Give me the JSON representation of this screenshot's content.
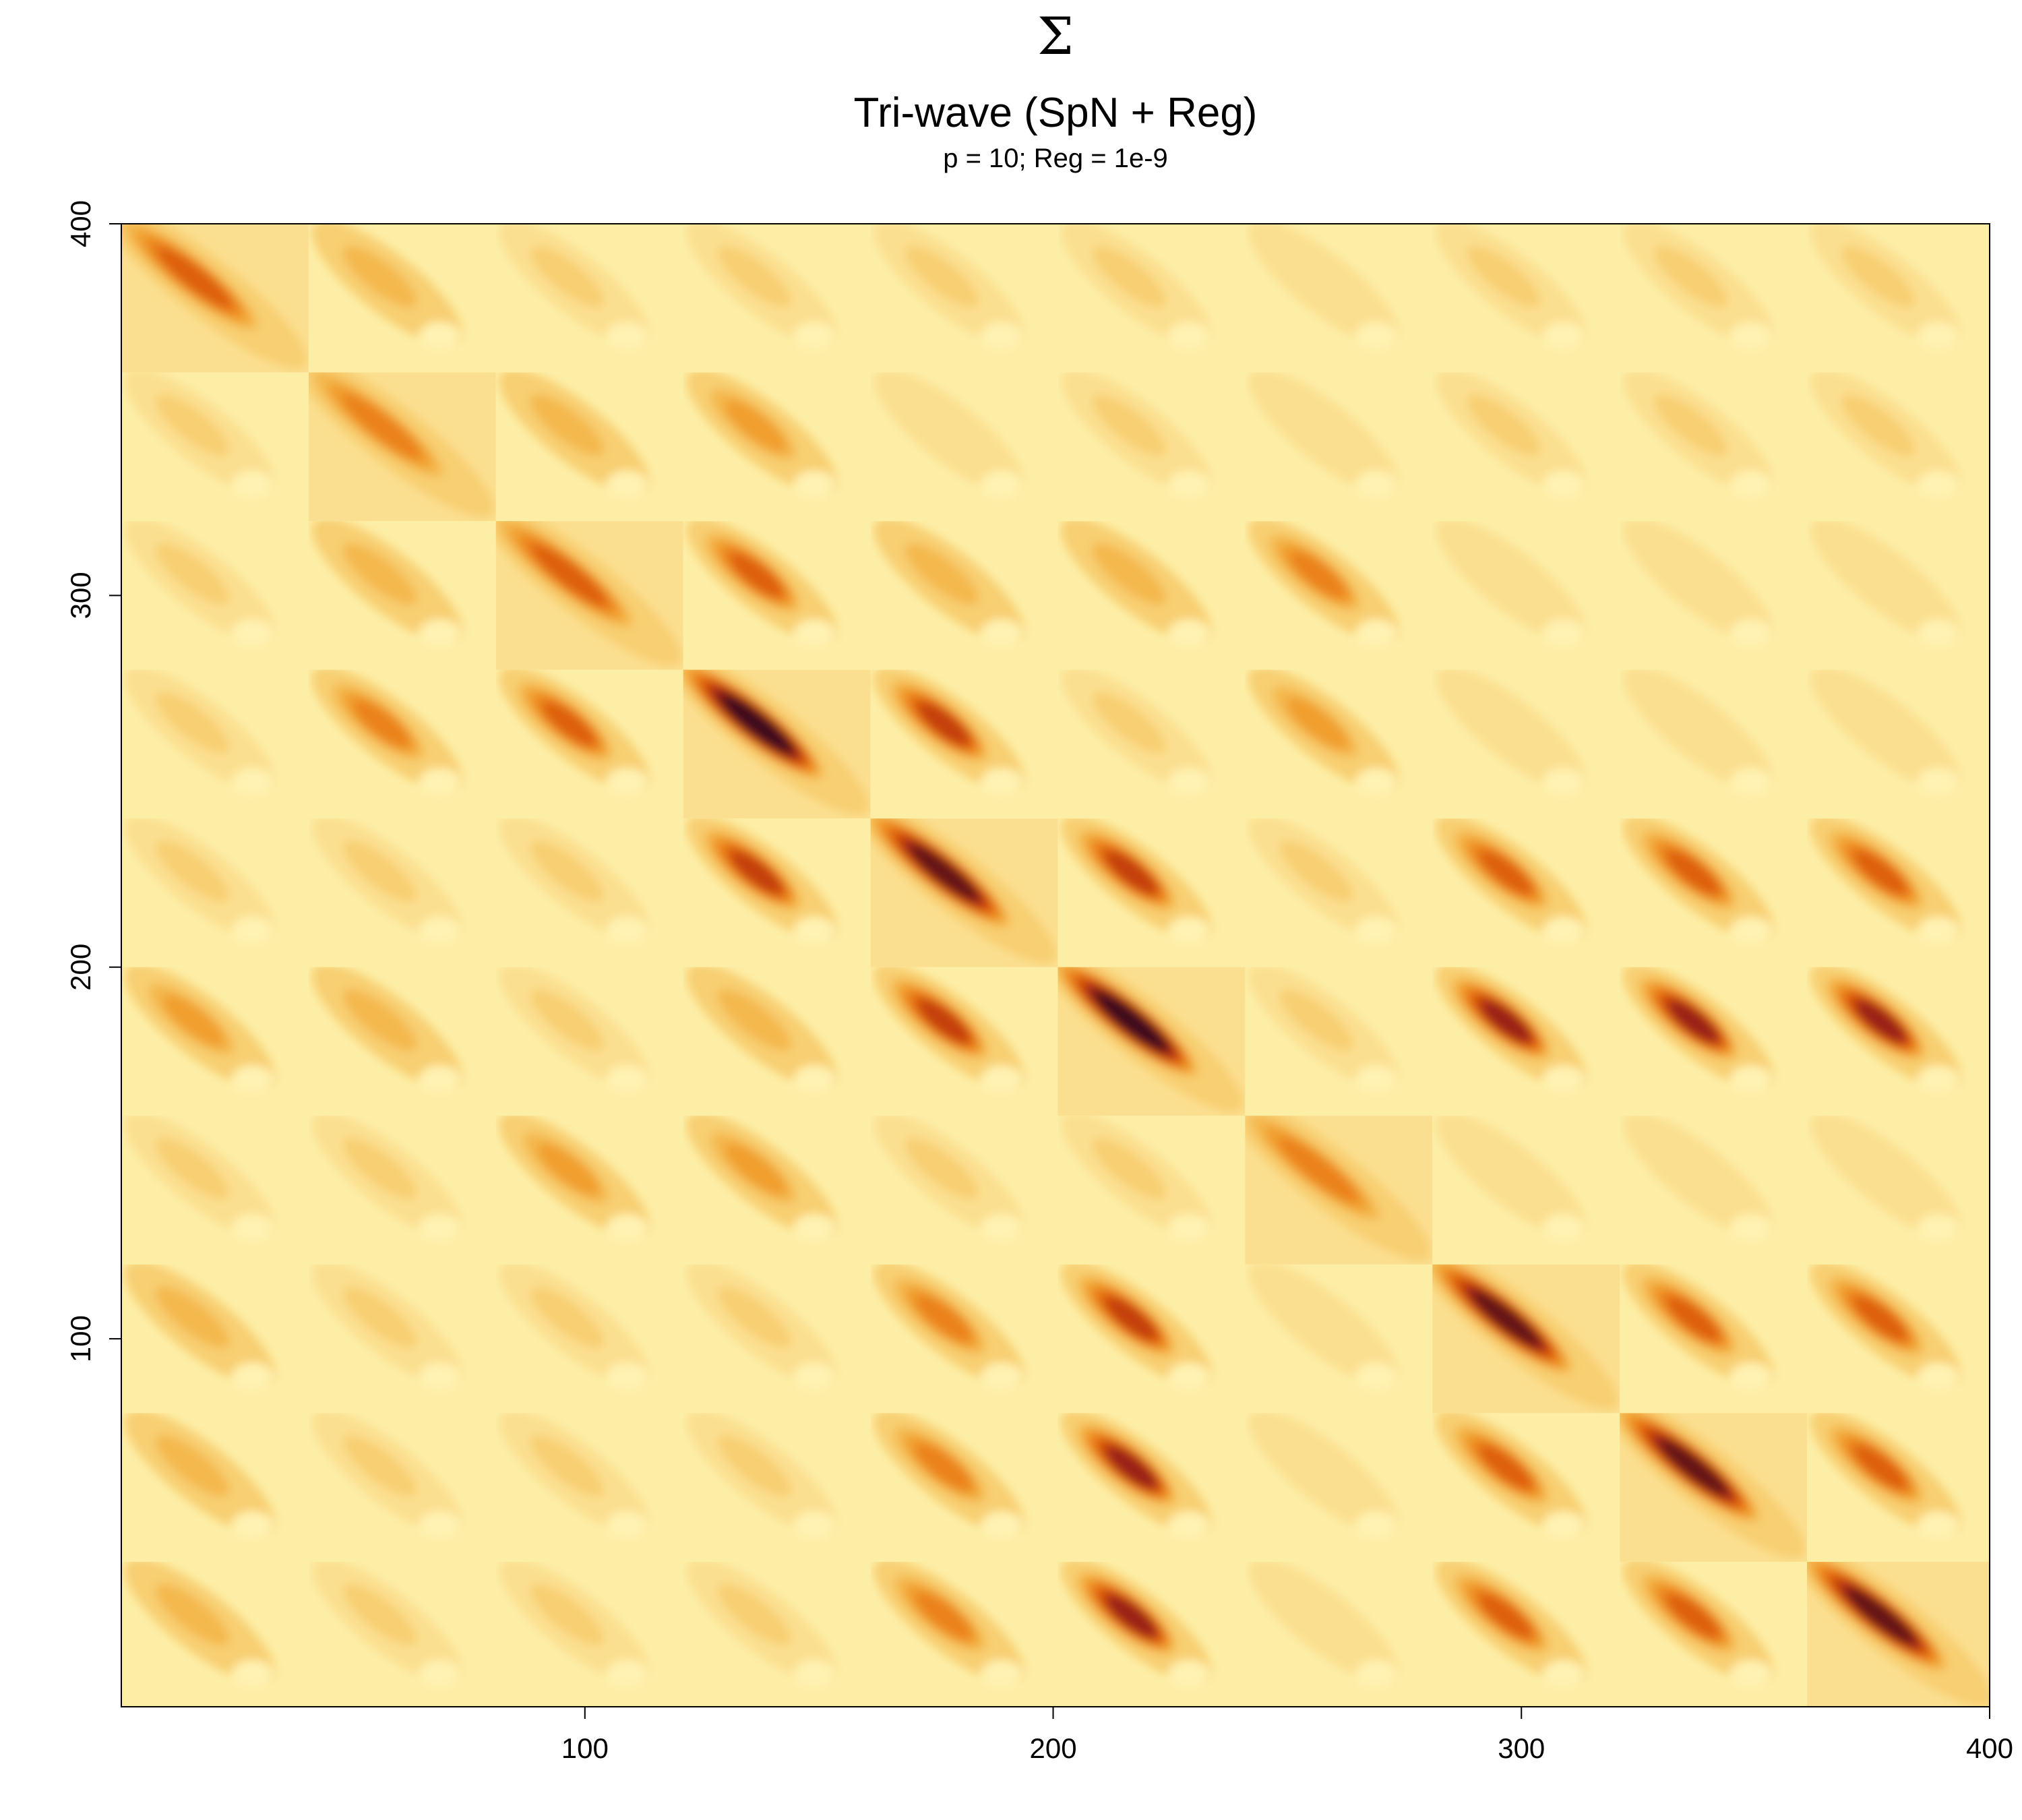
{
  "chart_data": {
    "type": "heatmap",
    "title": "Σ",
    "subtitle": "Tri-wave (SpN + Reg)",
    "subtitle2": "p = 10; Reg = 1e-9",
    "xlabel": "",
    "ylabel": "",
    "xlim": [
      1,
      400
    ],
    "ylim": [
      1,
      400
    ],
    "x_ticks": [
      100,
      200,
      300,
      400
    ],
    "y_ticks": [
      100,
      200,
      300,
      400
    ],
    "block_size": 40,
    "n_blocks": 10,
    "diagonal": "from top-left to bottom-right",
    "colormap": [
      "#fff2b2",
      "#fdeea6",
      "#fbdf90",
      "#f8cf72",
      "#f4b84e",
      "#f19f2e",
      "#eb821a",
      "#de6111",
      "#c43f0e",
      "#9a2212",
      "#651414",
      "#3c0a1e"
    ],
    "block_peak_levels": [
      [
        7,
        4,
        3,
        3,
        3,
        3,
        2,
        3,
        3,
        3
      ],
      [
        3,
        6,
        4,
        5,
        2,
        3,
        2,
        3,
        3,
        3
      ],
      [
        3,
        4,
        7,
        7,
        4,
        4,
        6,
        2,
        2,
        2
      ],
      [
        3,
        6,
        7,
        11,
        8,
        3,
        5,
        2,
        2,
        2
      ],
      [
        3,
        3,
        3,
        8,
        10,
        8,
        3,
        7,
        7,
        7
      ],
      [
        5,
        4,
        3,
        4,
        8,
        11,
        3,
        9,
        9,
        9
      ],
      [
        3,
        3,
        5,
        5,
        3,
        3,
        6,
        2,
        2,
        2
      ],
      [
        4,
        3,
        3,
        3,
        6,
        8,
        2,
        10,
        7,
        7
      ],
      [
        4,
        3,
        3,
        3,
        6,
        9,
        2,
        7,
        10,
        7
      ],
      [
        4,
        3,
        3,
        3,
        6,
        9,
        2,
        7,
        7,
        10
      ]
    ]
  }
}
